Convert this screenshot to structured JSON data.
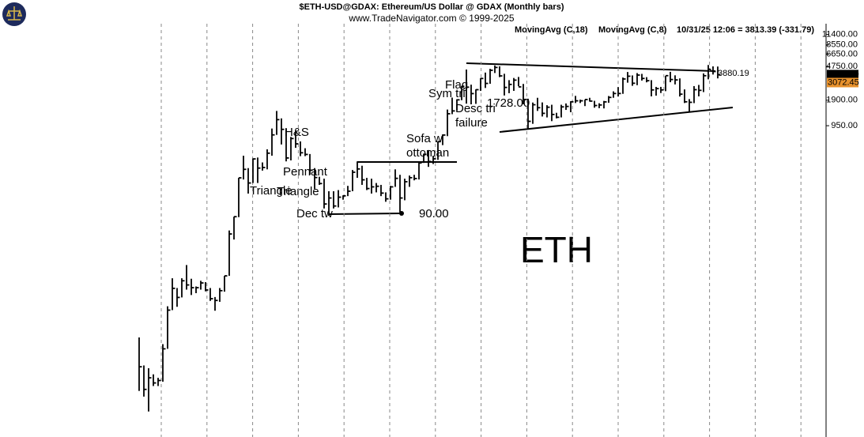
{
  "chart_data": {
    "type": "hlc_bar",
    "title": "$ETH-USD@GDAX:  Ethereum/US Dollar @ GDAX  (Monthly bars)",
    "subtitle": "www.TradeNavigator.com © 1999-2025",
    "legend": [
      "MovingAvg (C,18)",
      "MovingAvg (C,8)"
    ],
    "legend_colors": [
      "#e8912b",
      "#aaaaaa"
    ],
    "last_quote": "10/31/25 12:06 = 3813.39 (-331.79)",
    "price_labels": [
      {
        "value": 3813.39,
        "label": "3813.39",
        "color": "#000000"
      },
      {
        "value": 3072.45,
        "label": "3072.45",
        "color": "#e8912b"
      }
    ],
    "annotations": [
      "H&S",
      "Pennant",
      "Triangle",
      "Triangle",
      "Dec tw",
      "90.00",
      "Sofa w",
      "ottoman",
      "Flag",
      "Sym tri",
      "1728.00",
      "Desc tri",
      "failure",
      "3880.19"
    ],
    "symbol": "ETH",
    "color": "#000000",
    "log_scale": true,
    "ylim": [
      0.2,
      29000
    ],
    "yticks": [
      {
        "value": 950,
        "label": "950.00"
      },
      {
        "value": 1900,
        "label": "1900.00"
      },
      {
        "value": 4750,
        "label": "4750.00"
      },
      {
        "value": 6650,
        "label": "6650.00"
      },
      {
        "value": 8550,
        "label": "8550.00"
      },
      {
        "value": 11400,
        "label": "11400.00"
      }
    ],
    "high": [
      3.0,
      1.4,
      1.3,
      1.1,
      1.0,
      2.5,
      7.0,
      15,
      11.5,
      15,
      21.5,
      14.8,
      12,
      14,
      13.5,
      11.5,
      9,
      11.5,
      16,
      55,
      80,
      230,
      420,
      300,
      390,
      400,
      350,
      500,
      880,
      1420,
      1160,
      880,
      700,
      840,
      620,
      515,
      440,
      300,
      237,
      225,
      160,
      160,
      165,
      143,
      185,
      285,
      360,
      320,
      230,
      225,
      200,
      190,
      155,
      185,
      290,
      250,
      225,
      245,
      250,
      350,
      445,
      490,
      420,
      620,
      750,
      1475,
      2040,
      1950,
      2800,
      4380,
      2900,
      2550,
      3470,
      4030,
      4460,
      4890,
      4780,
      3900,
      3280,
      3480,
      3580,
      2960,
      1980,
      1785,
      2030,
      1790,
      1660,
      1680,
      1350,
      1680,
      1740,
      1850,
      2140,
      1930,
      1930,
      2030,
      1870,
      1750,
      1865,
      2130,
      2420,
      2715,
      3520,
      4095,
      3730,
      3975,
      3890,
      3560,
      3280,
      2730,
      2730,
      3680,
      4110,
      3740,
      3440,
      2550,
      1960,
      2790,
      2880,
      3940,
      4955,
      4770,
      4750
    ],
    "low": [
      0.7,
      0.6,
      0.4,
      0.8,
      0.8,
      0.9,
      2.2,
      6.3,
      6.9,
      8.9,
      11,
      9.5,
      10,
      11,
      10.5,
      8.1,
      6.2,
      7.9,
      10.4,
      16,
      43,
      79,
      220,
      150,
      200,
      200,
      280,
      290,
      420,
      740,
      570,
      360,
      370,
      520,
      415,
      415,
      250,
      170,
      190,
      100,
      82,
      100,
      103,
      127,
      140,
      160,
      230,
      190,
      165,
      150,
      155,
      140,
      120,
      127,
      180,
      90,
      125,
      180,
      215,
      220,
      345,
      310,
      335,
      375,
      560,
      715,
      1300,
      1440,
      1900,
      1730,
      1700,
      1720,
      2450,
      2650,
      2970,
      3980,
      3560,
      2160,
      2300,
      2450,
      2780,
      1700,
      880,
      1000,
      1420,
      1220,
      1190,
      1075,
      1160,
      1190,
      1460,
      1370,
      1760,
      1760,
      1620,
      1830,
      1550,
      1530,
      1520,
      1770,
      2030,
      2100,
      2260,
      3060,
      2810,
      2860,
      3240,
      3090,
      2110,
      2150,
      2310,
      2430,
      3100,
      2920,
      2100,
      1760,
      1385,
      1755,
      2110,
      2370,
      3355,
      3820,
      3440
    ],
    "close": [
      1.35,
      0.73,
      1.0,
      0.87,
      0.93,
      2.2,
      6.3,
      11.4,
      8.9,
      14,
      12.5,
      11.6,
      11.6,
      13.2,
      10.9,
      8.6,
      8.2,
      10.7,
      16,
      50,
      80,
      230,
      290,
      200,
      385,
      300,
      305,
      450,
      740,
      1120,
      860,
      395,
      670,
      580,
      455,
      435,
      283,
      232,
      197,
      113,
      133,
      107,
      136,
      141,
      160,
      268,
      293,
      218,
      172,
      180,
      183,
      152,
      130,
      180,
      227,
      133,
      207,
      231,
      226,
      345,
      435,
      359,
      386,
      615,
      737,
      1315,
      1420,
      1920,
      2775,
      2710,
      2275,
      2530,
      3430,
      3000,
      4290,
      4630,
      3680,
      2690,
      2920,
      3280,
      2730,
      1940,
      1070,
      1680,
      1550,
      1330,
      1570,
      1290,
      1195,
      1585,
      1605,
      1820,
      1870,
      1870,
      1935,
      1855,
      1645,
      1670,
      1815,
      2050,
      2280,
      2280,
      3385,
      3650,
      3015,
      3765,
      3435,
      3230,
      2515,
      2605,
      2515,
      3705,
      3335,
      3300,
      2240,
      1820,
      1795,
      2530,
      2485,
      3700,
      4390,
      4145,
      3813.39
    ]
  }
}
